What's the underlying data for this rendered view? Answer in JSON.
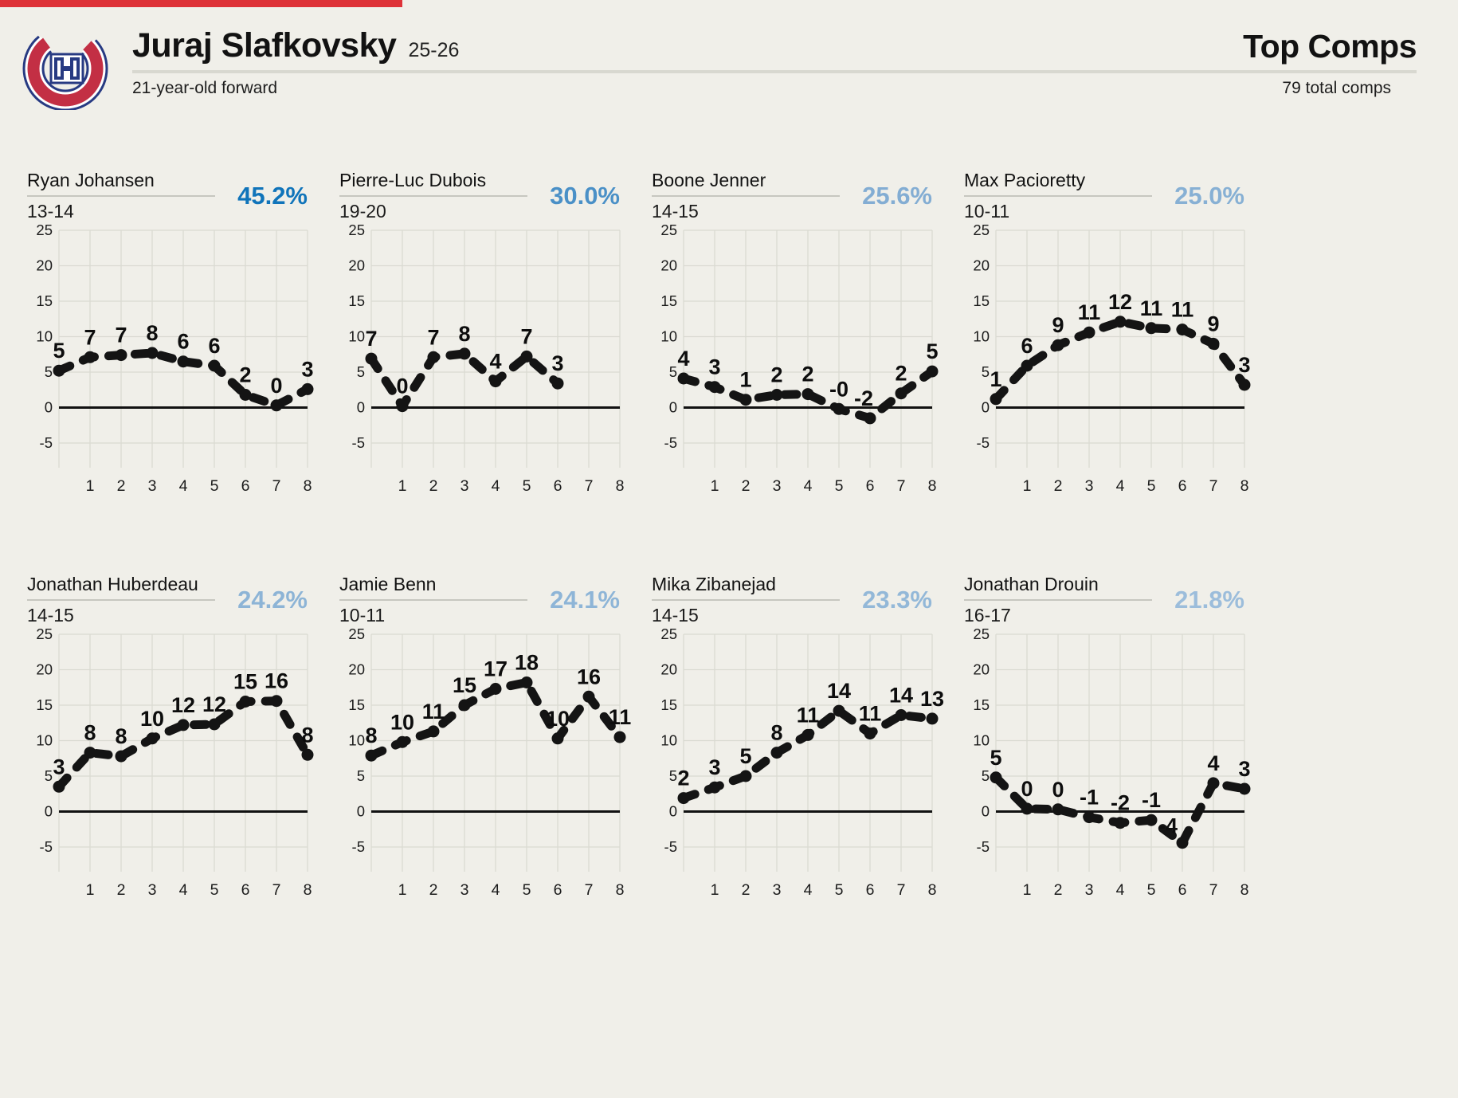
{
  "header": {
    "player": "Juraj Slafkovsky",
    "season": "25-26",
    "subtitle": "21-year-old forward",
    "right_title": "Top Comps",
    "right_subtitle": "79 total comps"
  },
  "colors": {
    "background": "#f0efe9",
    "accent_red": "#de3238",
    "grid": "#dadad2",
    "zero_line": "#111111",
    "series_line": "#141414",
    "divider": "#d8d8d0",
    "name_underline": "#c7c7c0",
    "pct_strong_blue": "#1074ba",
    "pct_light_blue": "#9cbddb"
  },
  "axis": {
    "y_ticks": [
      25,
      20,
      15,
      10,
      5,
      0,
      -5
    ],
    "x_ticks": [
      1,
      2,
      3,
      4,
      5,
      6,
      7,
      8
    ],
    "y_min": -5,
    "y_max": 25,
    "x_min": 0,
    "x_max": 8,
    "grid": true
  },
  "chart_data": [
    {
      "type": "line",
      "name": "Ryan Johansen",
      "season": "13-14",
      "similarity": "45.2%",
      "pct_color": "#1074ba",
      "x": [
        0,
        1,
        2,
        3,
        4,
        5,
        6,
        7,
        8
      ],
      "labels": [
        "5",
        "7",
        "7",
        "8",
        "6",
        "6",
        "2",
        "0",
        "3"
      ],
      "values": [
        5.2,
        7.1,
        7.4,
        7.7,
        6.5,
        5.9,
        1.8,
        0.3,
        2.6
      ]
    },
    {
      "type": "line",
      "name": "Pierre-Luc Dubois",
      "season": "19-20",
      "similarity": "30.0%",
      "pct_color": "#4a90c7",
      "x": [
        0,
        1,
        2,
        3,
        4,
        5,
        6
      ],
      "labels": [
        "7",
        "0",
        "7",
        "8",
        "4",
        "7",
        "3"
      ],
      "values": [
        6.9,
        0.2,
        7.1,
        7.6,
        3.7,
        7.2,
        3.4
      ]
    },
    {
      "type": "line",
      "name": "Boone Jenner",
      "season": "14-15",
      "similarity": "25.6%",
      "pct_color": "#83add3",
      "x": [
        0,
        1,
        2,
        3,
        4,
        5,
        6,
        7,
        8
      ],
      "labels": [
        "4",
        "3",
        "1",
        "2",
        "2",
        "-0",
        "-2",
        "2",
        "5"
      ],
      "values": [
        4.1,
        2.9,
        1.1,
        1.8,
        1.9,
        -0.2,
        -1.5,
        2.0,
        5.1
      ],
      "label_offsets": {
        "6": [
          -8,
          0
        ]
      }
    },
    {
      "type": "line",
      "name": "Max Pacioretty",
      "season": "10-11",
      "similarity": "25.0%",
      "pct_color": "#87b0d4",
      "x": [
        0,
        1,
        2,
        3,
        4,
        5,
        6,
        7,
        8
      ],
      "labels": [
        "1",
        "6",
        "9",
        "11",
        "12",
        "11",
        "11",
        "9",
        "3"
      ],
      "values": [
        1.2,
        5.9,
        8.8,
        10.6,
        12.1,
        11.2,
        11.0,
        9.0,
        3.2
      ]
    },
    {
      "type": "line",
      "name": "Jonathan Huberdeau",
      "season": "14-15",
      "similarity": "24.2%",
      "pct_color": "#8db4d6",
      "x": [
        0,
        1,
        2,
        3,
        4,
        5,
        6,
        7,
        8
      ],
      "labels": [
        "3",
        "8",
        "8",
        "10",
        "12",
        "12",
        "15",
        "16",
        "8"
      ],
      "values": [
        3.5,
        8.3,
        7.8,
        10.3,
        12.2,
        12.3,
        15.5,
        15.6,
        8.0
      ]
    },
    {
      "type": "line",
      "name": "Jamie Benn",
      "season": "10-11",
      "similarity": "24.1%",
      "pct_color": "#8eb5d7",
      "x": [
        0,
        1,
        2,
        3,
        4,
        5,
        6,
        7,
        8
      ],
      "labels": [
        "8",
        "10",
        "11",
        "15",
        "17",
        "18",
        "10",
        "16",
        "11"
      ],
      "values": [
        7.9,
        9.8,
        11.3,
        15.0,
        17.3,
        18.2,
        10.3,
        16.2,
        10.5
      ]
    },
    {
      "type": "line",
      "name": "Mika Zibanejad",
      "season": "14-15",
      "similarity": "23.3%",
      "pct_color": "#93b8d8",
      "x": [
        0,
        1,
        2,
        3,
        4,
        5,
        6,
        7,
        8
      ],
      "labels": [
        "2",
        "3",
        "5",
        "8",
        "11",
        "14",
        "11",
        "14",
        "13"
      ],
      "values": [
        1.9,
        3.4,
        5.0,
        8.3,
        10.8,
        14.2,
        11.0,
        13.6,
        13.1
      ]
    },
    {
      "type": "line",
      "name": "Jonathan Drouin",
      "season": "16-17",
      "similarity": "21.8%",
      "pct_color": "#9cbddb",
      "x": [
        0,
        1,
        2,
        3,
        4,
        5,
        6,
        7,
        8
      ],
      "labels": [
        "5",
        "0",
        "0",
        "-1",
        "-2",
        "-1",
        "-4",
        "4",
        "3"
      ],
      "values": [
        4.8,
        0.4,
        0.3,
        -0.8,
        -1.6,
        -1.2,
        -4.4,
        4.0,
        3.2
      ],
      "label_offsets": {
        "6": [
          -18,
          4
        ]
      }
    }
  ]
}
